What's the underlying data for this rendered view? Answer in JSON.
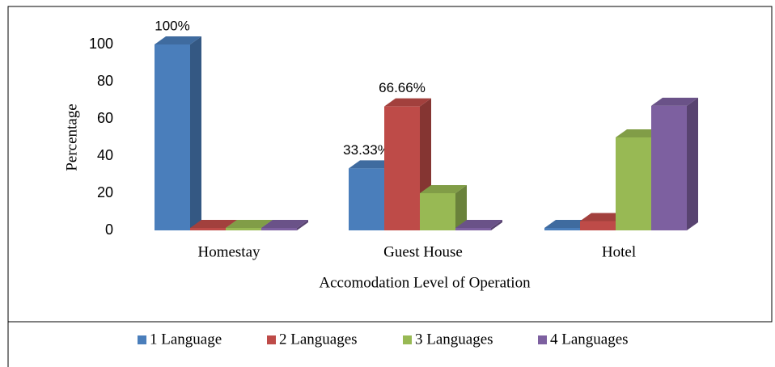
{
  "chart_data": {
    "type": "bar3d",
    "x_label": "Accomodation Level of Operation",
    "y_label": "Percentage",
    "categories": [
      "Homestay",
      "Guest House",
      "Hotel"
    ],
    "series": [
      {
        "name": "1 Language",
        "color": "#4a7ebb",
        "values": [
          100,
          33.33,
          0
        ],
        "value_labels": [
          "100%",
          "33.33%",
          null
        ]
      },
      {
        "name": "2 Languages",
        "color": "#be4b48",
        "values": [
          0,
          66.66,
          5
        ],
        "value_labels": [
          null,
          "66.66%",
          null
        ]
      },
      {
        "name": "3 Languages",
        "color": "#98b954",
        "values": [
          0,
          20,
          50
        ]
      },
      {
        "name": "4 Languages",
        "color": "#7d60a0",
        "values": [
          0,
          0,
          67
        ]
      }
    ],
    "ylim": [
      0,
      100
    ],
    "yticks": [
      0,
      20,
      40,
      60,
      80,
      100
    ],
    "legend": "bottom"
  }
}
